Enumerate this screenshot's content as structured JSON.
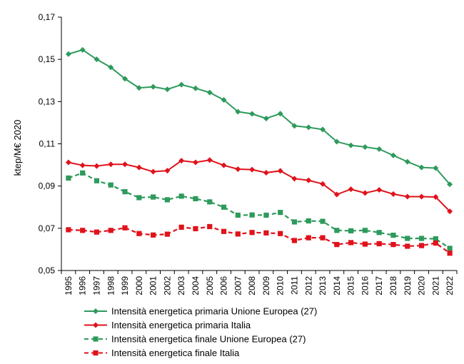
{
  "chart_data": {
    "type": "line",
    "title": "",
    "xlabel": "",
    "ylabel": "ktep/M€ 2020",
    "ylim": [
      0.05,
      0.17
    ],
    "y_ticks": [
      "0,05",
      "0,07",
      "0,09",
      "0,11",
      "0,13",
      "0,15",
      "0,17"
    ],
    "grid": false,
    "legend_position": "bottom",
    "categories": [
      "1995",
      "1996",
      "1997",
      "1998",
      "1999",
      "2000",
      "2001",
      "2002",
      "2003",
      "2004",
      "2005",
      "2006",
      "2007",
      "2008",
      "2009",
      "2010",
      "2011",
      "2012",
      "2013",
      "2014",
      "2015",
      "2016",
      "2017",
      "2018",
      "2019",
      "2020",
      "2021",
      "2022"
    ],
    "series": [
      {
        "name": "Intensità energetica primaria Unione Europea (27)",
        "color": "#2e9a5c",
        "line_style": "solid",
        "marker": "diamond",
        "values": [
          0.1525,
          0.1545,
          0.15,
          0.1462,
          0.1408,
          0.1365,
          0.137,
          0.1358,
          0.138,
          0.1363,
          0.1343,
          0.1308,
          0.1252,
          0.1242,
          0.122,
          0.1243,
          0.1185,
          0.1178,
          0.1168,
          0.111,
          0.1093,
          0.1085,
          0.1075,
          0.1045,
          0.1015,
          0.0988,
          0.0985,
          0.0908
        ]
      },
      {
        "name": "Intensità energetica primaria Italia",
        "color": "#e0121b",
        "line_style": "solid",
        "marker": "diamond",
        "values": [
          0.1012,
          0.0998,
          0.0995,
          0.1003,
          0.1003,
          0.0988,
          0.0968,
          0.0973,
          0.102,
          0.1012,
          0.1023,
          0.0998,
          0.098,
          0.0978,
          0.0963,
          0.0972,
          0.0935,
          0.0927,
          0.091,
          0.086,
          0.0885,
          0.0867,
          0.0882,
          0.0862,
          0.085,
          0.085,
          0.0848,
          0.078
        ]
      },
      {
        "name": "Intensità energetica finale Unione Europea (27)",
        "color": "#2e9a5c",
        "line_style": "dashed",
        "marker": "square",
        "values": [
          0.0938,
          0.0962,
          0.0925,
          0.0905,
          0.0873,
          0.0845,
          0.0848,
          0.0835,
          0.0852,
          0.084,
          0.0825,
          0.08,
          0.0762,
          0.0763,
          0.0762,
          0.0775,
          0.073,
          0.0735,
          0.0733,
          0.069,
          0.0688,
          0.069,
          0.068,
          0.0667,
          0.0652,
          0.0652,
          0.065,
          0.0605
        ]
      },
      {
        "name": "Intensità energetica finale Italia",
        "color": "#e0121b",
        "line_style": "dashed",
        "marker": "square",
        "values": [
          0.0693,
          0.069,
          0.0682,
          0.069,
          0.0702,
          0.0675,
          0.0668,
          0.0672,
          0.0705,
          0.0698,
          0.0708,
          0.0685,
          0.0673,
          0.068,
          0.0678,
          0.0675,
          0.0642,
          0.0655,
          0.0655,
          0.0623,
          0.0632,
          0.0625,
          0.0627,
          0.0623,
          0.0615,
          0.0618,
          0.063,
          0.0582
        ]
      }
    ]
  }
}
